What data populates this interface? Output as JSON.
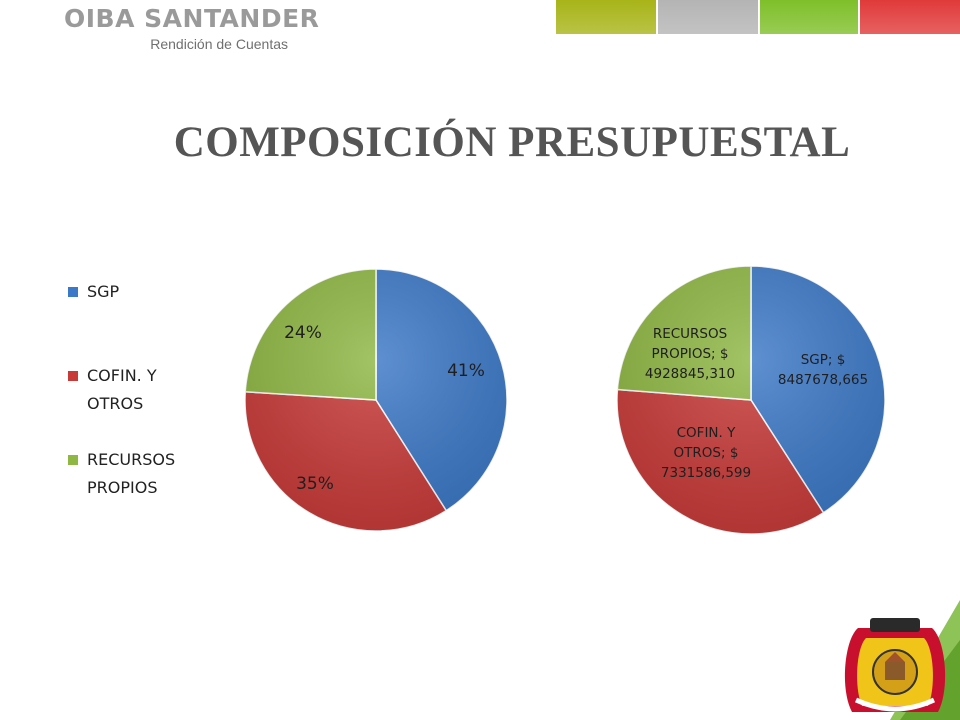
{
  "header": {
    "brand_title": "OIBA SANTANDER",
    "brand_subtitle": "Rendición de Cuentas",
    "color_bars": [
      "#a8b418",
      "#b4b4b4",
      "#7fbf2a",
      "#e03a3a"
    ]
  },
  "slide": {
    "title": "COMPOSICIÓN PRESUPUESTAL"
  },
  "legend": [
    {
      "label": "SGP",
      "color": "#3b78c7"
    },
    {
      "label": "COFIN. Y OTROS",
      "color": "#c83a38"
    },
    {
      "label": "RECURSOS PROPIOS",
      "color": "#8fb743"
    }
  ],
  "chart_data": [
    {
      "type": "pie",
      "categories": [
        "SGP",
        "COFIN. Y OTROS",
        "RECURSOS PROPIOS"
      ],
      "values": [
        41,
        35,
        24
      ],
      "data_labels": [
        "41%",
        "35%",
        "24%"
      ],
      "colors": [
        "#3b78c7",
        "#c83a38",
        "#8fb743"
      ],
      "legend": "left"
    },
    {
      "type": "pie",
      "categories": [
        "SGP",
        "COFIN. Y OTROS",
        "RECURSOS PROPIOS"
      ],
      "values": [
        8487678.665,
        7331586.599,
        4928845.31
      ],
      "data_labels": [
        [
          "SGP; $",
          "8487678,665"
        ],
        [
          "COFIN. Y",
          "OTROS; $",
          "7331586,599"
        ],
        [
          "RECURSOS",
          "PROPIOS; $",
          "4928845,310"
        ]
      ],
      "colors": [
        "#3b78c7",
        "#c83a38",
        "#8fb743"
      ]
    }
  ]
}
